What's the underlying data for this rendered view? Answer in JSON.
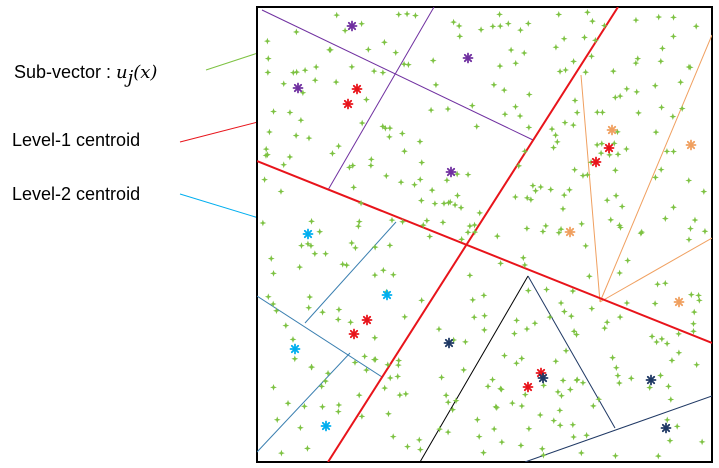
{
  "labels": {
    "subvector_prefix": "Sub-vector : ",
    "subvector_math": "u",
    "subvector_sub": "j",
    "subvector_arg": "(x)",
    "level1": "Level-1 centroid",
    "level2": "Level-2 centroid"
  },
  "colors": {
    "frame": "#000000",
    "data_point": "#7dc242",
    "level1": "#e8141b",
    "purple": "#7030a0",
    "orange": "#f0a060",
    "blue_lines": "#3a7fb0",
    "cyan": "#00aeef",
    "navy": "#1f3864",
    "black": "#000000"
  },
  "icons": {
    "data_point": "sparkle-star-icon",
    "centroid": "asterisk-star-icon"
  }
}
